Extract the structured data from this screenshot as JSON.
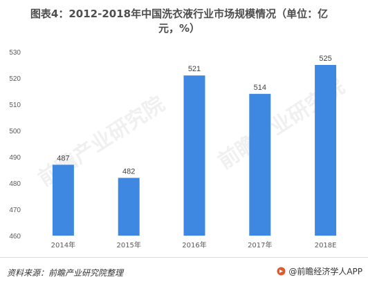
{
  "title": {
    "line1": "图表4：2012-2018年中国洗衣液行业市场规模情况（单位：亿",
    "line2": "元，%）"
  },
  "chart_data": {
    "type": "bar",
    "categories": [
      "2014年",
      "2015年",
      "2016年",
      "2017年",
      "2018E"
    ],
    "values": [
      487,
      482,
      521,
      514,
      525
    ],
    "value_labels": [
      "487",
      "482",
      "521",
      "514",
      "525"
    ],
    "ylim": [
      460,
      530
    ],
    "yticks": [
      "460",
      "470",
      "480",
      "490",
      "500",
      "510",
      "520",
      "530"
    ],
    "bar_color": "#3f88e2",
    "grid": false,
    "legend": "none"
  },
  "footer": {
    "source": "资料来源：前瞻产业研究院整理",
    "brand": "@前瞻经济学人APP"
  },
  "watermark": {
    "text": "前瞻产业研究院"
  },
  "colors": {
    "bar": "#3f88e2",
    "axis_text": "#595959",
    "label_text": "#404040"
  }
}
